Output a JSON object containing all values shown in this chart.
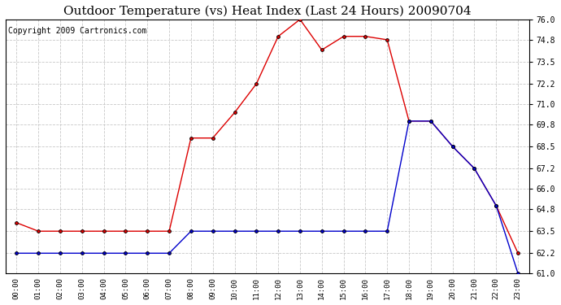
{
  "title": "Outdoor Temperature (vs) Heat Index (Last 24 Hours) 20090704",
  "copyright": "Copyright 2009 Cartronics.com",
  "hours": [
    "00:00",
    "01:00",
    "02:00",
    "03:00",
    "04:00",
    "05:00",
    "06:00",
    "07:00",
    "08:00",
    "09:00",
    "10:00",
    "11:00",
    "12:00",
    "13:00",
    "14:00",
    "15:00",
    "16:00",
    "17:00",
    "18:00",
    "19:00",
    "20:00",
    "21:00",
    "22:00",
    "23:00"
  ],
  "red_data": [
    64.0,
    63.5,
    63.5,
    63.5,
    63.5,
    63.5,
    63.5,
    63.5,
    69.0,
    69.0,
    70.5,
    72.2,
    75.0,
    76.0,
    74.2,
    75.0,
    75.0,
    74.8,
    70.0,
    70.0,
    68.5,
    67.2,
    65.0,
    62.2
  ],
  "blue_data": [
    62.2,
    62.2,
    62.2,
    62.2,
    62.2,
    62.2,
    62.2,
    62.2,
    63.5,
    63.5,
    63.5,
    63.5,
    63.5,
    63.5,
    63.5,
    63.5,
    63.5,
    63.5,
    70.0,
    70.0,
    68.5,
    67.2,
    65.0,
    61.0
  ],
  "ylim": [
    61.0,
    76.0
  ],
  "yticks": [
    61.0,
    62.2,
    63.5,
    64.8,
    66.0,
    67.2,
    68.5,
    69.8,
    71.0,
    72.2,
    73.5,
    74.8,
    76.0
  ],
  "bg_color": "#ffffff",
  "grid_color": "#c8c8c8",
  "red_color": "#dd0000",
  "blue_color": "#0000cc",
  "title_fontsize": 11,
  "copyright_fontsize": 7
}
